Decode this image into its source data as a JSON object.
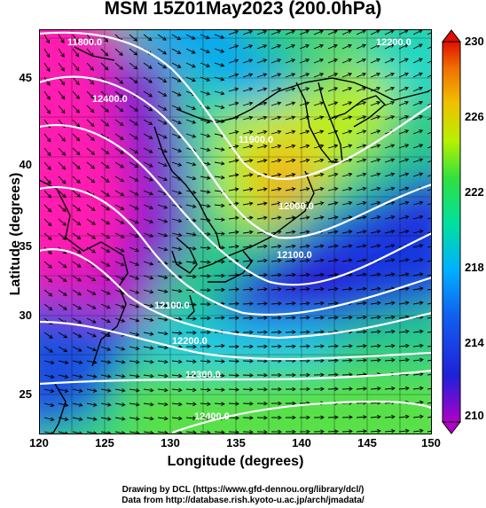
{
  "title": "MSM 15Z01May2023 (200.0hPa)",
  "axes": {
    "xlabel": "Longitude (degrees)",
    "ylabel": "Latitude  (degrees)",
    "xticks": [
      "120",
      "125",
      "130",
      "135",
      "140",
      "145",
      "150"
    ],
    "yticks": [
      "45",
      "40",
      "35",
      "30",
      "25"
    ]
  },
  "colorbar": {
    "ticks": [
      "230",
      "226",
      "222",
      "218",
      "214",
      "210"
    ],
    "min": 210,
    "max": 230,
    "colors": [
      "#b000c8",
      "#1a2bd8",
      "#00a0ff",
      "#00e0a0",
      "#40e040",
      "#c8f000",
      "#f0d000",
      "#f08000",
      "#e01000"
    ]
  },
  "contour_labels": [
    "11800.0",
    "11900.0",
    "12000.0",
    "12100.0",
    "12100.0",
    "12200.0",
    "12200.0",
    "12300.0",
    "12400.0",
    "12400.0"
  ],
  "credits": {
    "line1": "Drawing by DCL (https://www.gfd-dennou.org/library/dcl/)",
    "line2": "Data from http://database.rish.kyoto-u.ac.jp/arch/jmadata/"
  },
  "chart_data": {
    "type": "heatmap",
    "title": "MSM 15Z01May2023 (200.0hPa)",
    "xlabel": "Longitude (degrees)",
    "ylabel": "Latitude  (degrees)",
    "xlim": [
      120,
      150
    ],
    "ylim": [
      22.4,
      47.6
    ],
    "xticks": [
      120,
      125,
      130,
      135,
      140,
      145,
      150
    ],
    "yticks": [
      25,
      30,
      35,
      40,
      45
    ],
    "colorbar_range": [
      210,
      230
    ],
    "colorbar_ticks": [
      210,
      214,
      218,
      222,
      226,
      230
    ],
    "overlays": [
      "temperature shading",
      "geopotential height contours (white)",
      "wind vectors (black arrows)",
      "coastlines"
    ],
    "contour_values": [
      11800,
      11900,
      12000,
      12100,
      12200,
      12300,
      12400
    ],
    "grid": true
  }
}
